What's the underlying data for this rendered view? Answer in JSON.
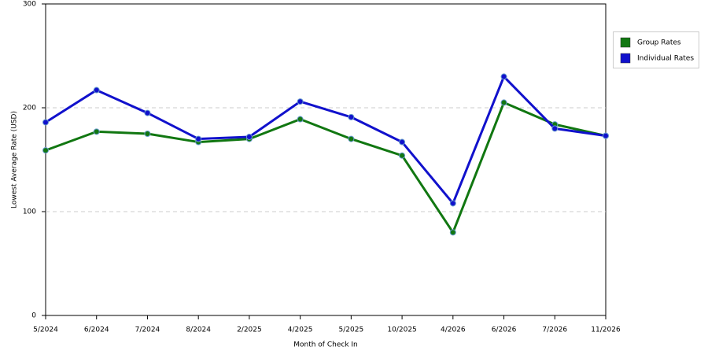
{
  "chart_data": {
    "type": "line",
    "x_label": "Month of Check In",
    "y_label": "Lowest Average Rate (USD)",
    "categories": [
      "5/2024",
      "6/2024",
      "7/2024",
      "8/2024",
      "2/2025",
      "4/2025",
      "5/2025",
      "10/2025",
      "4/2026",
      "6/2026",
      "7/2026",
      "11/2026"
    ],
    "series": [
      {
        "name": "Group Rates",
        "color": "#117711",
        "values": [
          159,
          177,
          175,
          167,
          170,
          189,
          170,
          154,
          80,
          205,
          184,
          173
        ]
      },
      {
        "name": "Individual Rates",
        "color": "#1111cc",
        "values": [
          186,
          217,
          195,
          170,
          172,
          206,
          191,
          167,
          108,
          230,
          180,
          173
        ]
      }
    ],
    "ylim": [
      0,
      300
    ],
    "yticks": [
      0,
      100,
      200,
      300
    ],
    "grid": true,
    "legend": "right"
  }
}
